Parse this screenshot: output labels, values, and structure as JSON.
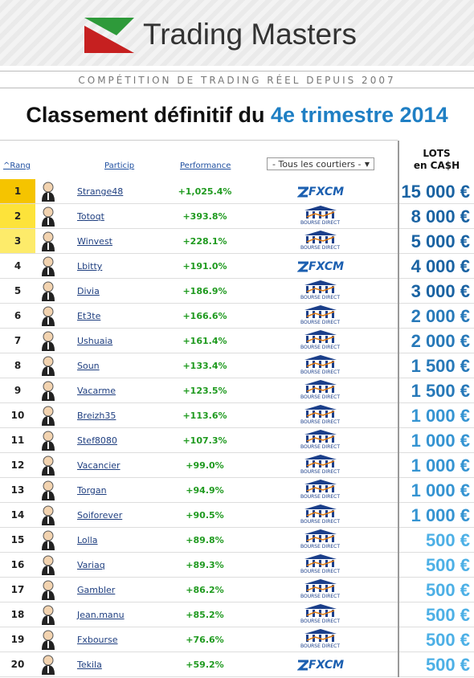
{
  "header": {
    "brand": "Trading Masters",
    "tagline": "COMPÉTITION DE TRADING RÉEL DEPUIS 2007",
    "title_prefix": "Classement définitif du ",
    "title_highlight": "4e trimestre 2014"
  },
  "table": {
    "columns": {
      "rank": "Rang",
      "participant": "Particip",
      "performance": "Performance",
      "broker_filter": "- Tous les courtiers -",
      "prize_line1": "LOTS",
      "prize_line2": "en CA$H"
    },
    "rows": [
      {
        "rank": 1,
        "name": "Strange48",
        "performance": "+1,025.4%",
        "broker": "FXCM",
        "prize": "15 000 €",
        "prize_color": "#1a63a3"
      },
      {
        "rank": 2,
        "name": "Totoqt",
        "performance": "+393.8%",
        "broker": "BOURSE DIRECT",
        "prize": "8 000 €",
        "prize_color": "#1a63a3"
      },
      {
        "rank": 3,
        "name": "Winvest",
        "performance": "+228.1%",
        "broker": "BOURSE DIRECT",
        "prize": "5 000 €",
        "prize_color": "#1a63a3"
      },
      {
        "rank": 4,
        "name": "Lbitty",
        "performance": "+191.0%",
        "broker": "FXCM",
        "prize": "4 000 €",
        "prize_color": "#1a63a3"
      },
      {
        "rank": 5,
        "name": "Divia",
        "performance": "+186.9%",
        "broker": "BOURSE DIRECT",
        "prize": "3 000 €",
        "prize_color": "#1a63a3"
      },
      {
        "rank": 6,
        "name": "Et3te",
        "performance": "+166.6%",
        "broker": "BOURSE DIRECT",
        "prize": "2 000 €",
        "prize_color": "#2779b9"
      },
      {
        "rank": 7,
        "name": "Ushuaia",
        "performance": "+161.4%",
        "broker": "BOURSE DIRECT",
        "prize": "2 000 €",
        "prize_color": "#2779b9"
      },
      {
        "rank": 8,
        "name": "Soun",
        "performance": "+133.4%",
        "broker": "BOURSE DIRECT",
        "prize": "1 500 €",
        "prize_color": "#2779b9"
      },
      {
        "rank": 9,
        "name": "Vacarme",
        "performance": "+123.5%",
        "broker": "BOURSE DIRECT",
        "prize": "1 500 €",
        "prize_color": "#2779b9"
      },
      {
        "rank": 10,
        "name": "Breizh35",
        "performance": "+113.6%",
        "broker": "BOURSE DIRECT",
        "prize": "1 000 €",
        "prize_color": "#3594d2"
      },
      {
        "rank": 11,
        "name": "Stef8080",
        "performance": "+107.3%",
        "broker": "BOURSE DIRECT",
        "prize": "1 000 €",
        "prize_color": "#3594d2"
      },
      {
        "rank": 12,
        "name": "Vacancier",
        "performance": "+99.0%",
        "broker": "BOURSE DIRECT",
        "prize": "1 000 €",
        "prize_color": "#3594d2"
      },
      {
        "rank": 13,
        "name": "Torgan",
        "performance": "+94.9%",
        "broker": "BOURSE DIRECT",
        "prize": "1 000 €",
        "prize_color": "#3594d2"
      },
      {
        "rank": 14,
        "name": "Soiforever",
        "performance": "+90.5%",
        "broker": "BOURSE DIRECT",
        "prize": "1 000 €",
        "prize_color": "#3594d2"
      },
      {
        "rank": 15,
        "name": "Lolla",
        "performance": "+89.8%",
        "broker": "BOURSE DIRECT",
        "prize": "500 €",
        "prize_color": "#4db0e6"
      },
      {
        "rank": 16,
        "name": "Variaq",
        "performance": "+89.3%",
        "broker": "BOURSE DIRECT",
        "prize": "500 €",
        "prize_color": "#4db0e6"
      },
      {
        "rank": 17,
        "name": "Gambler",
        "performance": "+86.2%",
        "broker": "BOURSE DIRECT",
        "prize": "500 €",
        "prize_color": "#4db0e6"
      },
      {
        "rank": 18,
        "name": "Jean.manu",
        "performance": "+85.2%",
        "broker": "BOURSE DIRECT",
        "prize": "500 €",
        "prize_color": "#4db0e6"
      },
      {
        "rank": 19,
        "name": "Fxbourse",
        "performance": "+76.6%",
        "broker": "BOURSE DIRECT",
        "prize": "500 €",
        "prize_color": "#4db0e6"
      },
      {
        "rank": 20,
        "name": "Tekila",
        "performance": "+59.2%",
        "broker": "FXCM",
        "prize": "500 €",
        "prize_color": "#4db0e6"
      }
    ]
  }
}
